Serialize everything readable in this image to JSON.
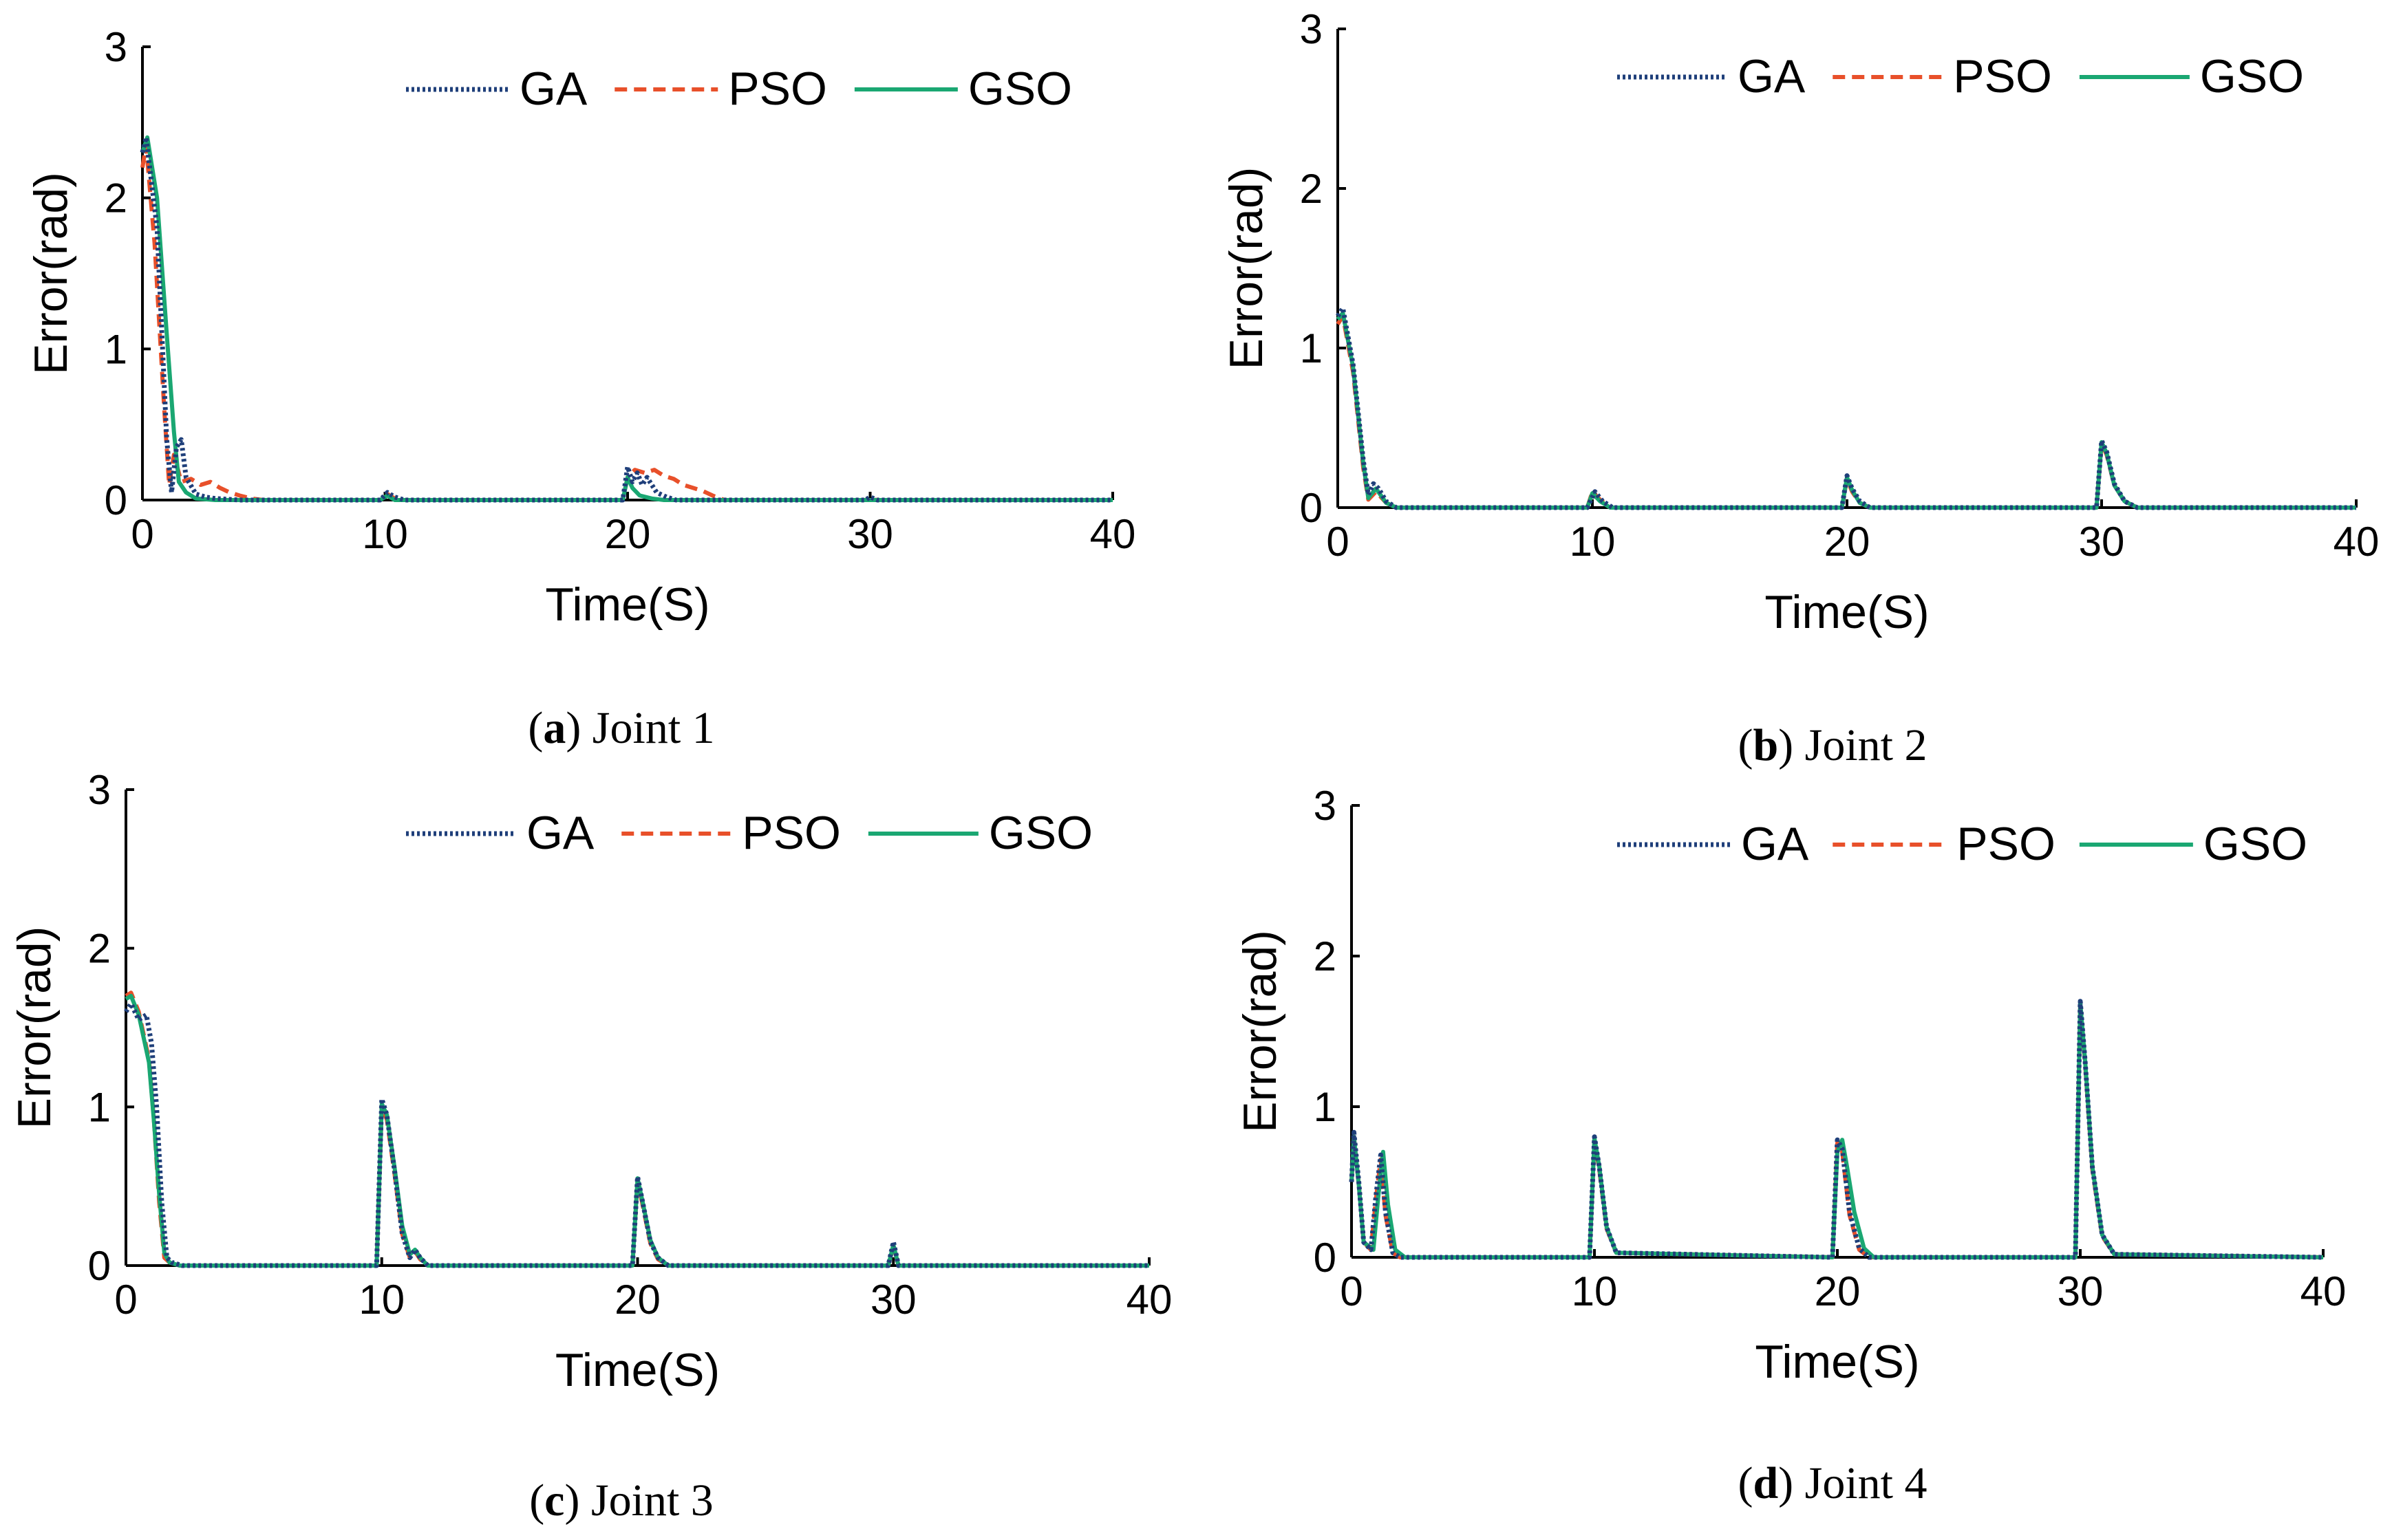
{
  "figure": {
    "legend_labels": [
      "GA",
      "PSO",
      "GSO"
    ],
    "colors": {
      "GA": "#1f3f7a",
      "PSO": "#e8502a",
      "GSO": "#1aa772"
    }
  },
  "chart_data": [
    {
      "type": "line",
      "panel": "a",
      "caption_letter": "a",
      "caption_text": " Joint 1",
      "xlabel": "Time(S)",
      "ylabel": "Error(rad)",
      "xlim": [
        0,
        40
      ],
      "ylim": [
        0,
        3
      ],
      "xticks": [
        "0",
        "10",
        "20",
        "30",
        "40"
      ],
      "yticks": [
        "0",
        "1",
        "2",
        "3"
      ],
      "legend": [
        "GA",
        "PSO",
        "GSO"
      ],
      "series": [
        {
          "name": "GA",
          "style": "dotted",
          "x": [
            0,
            0.15,
            0.6,
            1.0,
            1.2,
            1.4,
            1.6,
            1.8,
            2.2,
            2.6,
            3.0,
            4.0,
            9.8,
            10.1,
            10.4,
            10.8,
            19.8,
            20.0,
            20.2,
            20.4,
            20.6,
            20.8,
            21.2,
            21.6,
            22.0,
            29.8,
            30.0,
            30.3,
            40
          ],
          "y": [
            2.3,
            2.4,
            1.8,
            0.4,
            0.05,
            0.35,
            0.4,
            0.15,
            0.04,
            0.02,
            0.01,
            0.0,
            0.0,
            0.05,
            0.02,
            0.0,
            0.0,
            0.22,
            0.12,
            0.18,
            0.1,
            0.15,
            0.05,
            0.02,
            0.0,
            0.0,
            0.02,
            0.0,
            0.0
          ]
        },
        {
          "name": "PSO",
          "style": "dashed",
          "x": [
            0,
            0.15,
            0.5,
            0.9,
            1.1,
            1.3,
            1.6,
            2.0,
            2.4,
            2.8,
            3.2,
            3.6,
            4.0,
            4.5,
            5.0,
            9.8,
            10.1,
            10.5,
            19.8,
            20.0,
            20.3,
            20.7,
            21.1,
            21.5,
            21.9,
            22.3,
            22.7,
            23.1,
            23.5,
            24.0,
            29.8,
            30.0,
            30.3,
            40
          ],
          "y": [
            2.2,
            2.35,
            1.7,
            0.6,
            0.1,
            0.3,
            0.12,
            0.14,
            0.1,
            0.12,
            0.08,
            0.05,
            0.03,
            0.01,
            0.0,
            0.0,
            0.04,
            0.0,
            0.0,
            0.15,
            0.2,
            0.18,
            0.2,
            0.16,
            0.14,
            0.1,
            0.08,
            0.06,
            0.03,
            0.0,
            0.0,
            0.01,
            0.0,
            0.0
          ]
        },
        {
          "name": "GSO",
          "style": "solid",
          "x": [
            0,
            0.2,
            0.6,
            1.0,
            1.3,
            1.5,
            1.8,
            2.2,
            3.0,
            9.8,
            10.1,
            10.4,
            19.8,
            20.0,
            20.2,
            20.5,
            21.0,
            21.5,
            40
          ],
          "y": [
            2.3,
            2.4,
            2.0,
            1.1,
            0.45,
            0.12,
            0.05,
            0.01,
            0.0,
            0.0,
            0.03,
            0.0,
            0.0,
            0.15,
            0.08,
            0.03,
            0.01,
            0.0,
            0.0
          ]
        }
      ]
    },
    {
      "type": "line",
      "panel": "b",
      "caption_letter": "b",
      "caption_text": " Joint 2",
      "xlabel": "Time(S)",
      "ylabel": "Error(rad)",
      "xlim": [
        0,
        40
      ],
      "ylim": [
        0,
        3
      ],
      "xticks": [
        "0",
        "10",
        "20",
        "30",
        "40"
      ],
      "yticks": [
        "0",
        "1",
        "2",
        "3"
      ],
      "legend": [
        "GA",
        "PSO",
        "GSO"
      ],
      "series": [
        {
          "name": "GA",
          "style": "dotted",
          "x": [
            0,
            0.2,
            0.6,
            1.0,
            1.2,
            1.4,
            1.6,
            1.9,
            2.3,
            9.8,
            10.1,
            10.4,
            10.8,
            19.8,
            20.0,
            20.2,
            20.5,
            20.9,
            29.8,
            30.0,
            30.2,
            30.5,
            30.9,
            31.4,
            40
          ],
          "y": [
            1.2,
            1.25,
            0.9,
            0.3,
            0.08,
            0.15,
            0.12,
            0.04,
            0.0,
            0.0,
            0.1,
            0.04,
            0.0,
            0.0,
            0.2,
            0.12,
            0.04,
            0.0,
            0.0,
            0.42,
            0.35,
            0.15,
            0.04,
            0.0,
            0.0
          ]
        },
        {
          "name": "PSO",
          "style": "dashed",
          "x": [
            0,
            0.2,
            0.6,
            1.0,
            1.2,
            1.5,
            1.9,
            2.3,
            9.8,
            10.0,
            10.3,
            10.7,
            19.8,
            20.0,
            20.2,
            20.5,
            20.9,
            29.8,
            30.0,
            30.2,
            30.5,
            30.9,
            31.4,
            40
          ],
          "y": [
            1.15,
            1.2,
            0.85,
            0.25,
            0.05,
            0.1,
            0.03,
            0.0,
            0.0,
            0.1,
            0.05,
            0.0,
            0.0,
            0.18,
            0.1,
            0.03,
            0.0,
            0.0,
            0.4,
            0.33,
            0.14,
            0.04,
            0.0,
            0.0
          ]
        },
        {
          "name": "GSO",
          "style": "solid",
          "x": [
            0,
            0.2,
            0.6,
            1.0,
            1.2,
            1.5,
            1.9,
            2.3,
            9.8,
            10.0,
            10.3,
            10.7,
            19.8,
            20.0,
            20.2,
            20.5,
            20.9,
            29.8,
            30.0,
            30.2,
            30.5,
            30.9,
            31.4,
            40
          ],
          "y": [
            1.18,
            1.22,
            0.88,
            0.28,
            0.06,
            0.12,
            0.03,
            0.0,
            0.0,
            0.09,
            0.04,
            0.0,
            0.0,
            0.19,
            0.11,
            0.03,
            0.0,
            0.0,
            0.41,
            0.34,
            0.14,
            0.04,
            0.0,
            0.0
          ]
        }
      ]
    },
    {
      "type": "line",
      "panel": "c",
      "caption_letter": "c",
      "caption_text": " Joint 3",
      "xlabel": "Time(S)",
      "ylabel": "Error(rad)",
      "xlim": [
        0,
        40
      ],
      "ylim": [
        0,
        3
      ],
      "xticks": [
        "0",
        "10",
        "20",
        "30",
        "40"
      ],
      "yticks": [
        "0",
        "1",
        "2",
        "3"
      ],
      "legend": [
        "GA",
        "PSO",
        "GSO"
      ],
      "series": [
        {
          "name": "GA",
          "style": "dotted",
          "x": [
            0,
            0.2,
            0.5,
            0.8,
            1.0,
            1.2,
            1.4,
            1.6,
            1.8,
            2.2,
            9.8,
            10.0,
            10.2,
            10.5,
            10.8,
            11.1,
            11.3,
            11.5,
            11.8,
            19.8,
            20.0,
            20.2,
            20.5,
            20.8,
            21.2,
            29.8,
            30.0,
            30.2,
            40
          ],
          "y": [
            1.6,
            1.65,
            1.55,
            1.58,
            1.4,
            1.0,
            0.4,
            0.05,
            0.02,
            0.0,
            0.0,
            1.05,
            0.95,
            0.6,
            0.2,
            0.05,
            0.1,
            0.05,
            0.0,
            0.0,
            0.56,
            0.4,
            0.15,
            0.05,
            0.0,
            0.0,
            0.15,
            0.0,
            0.0
          ]
        },
        {
          "name": "PSO",
          "style": "dashed",
          "x": [
            0,
            0.2,
            0.5,
            0.9,
            1.1,
            1.3,
            1.5,
            1.7,
            2.1,
            9.8,
            10.0,
            10.2,
            10.5,
            10.8,
            11.1,
            11.3,
            11.5,
            11.8,
            19.8,
            20.0,
            20.2,
            20.5,
            20.8,
            21.2,
            29.8,
            30.0,
            30.2,
            40
          ],
          "y": [
            1.7,
            1.72,
            1.6,
            1.3,
            0.9,
            0.4,
            0.05,
            0.02,
            0.0,
            0.0,
            1.0,
            0.92,
            0.58,
            0.2,
            0.05,
            0.09,
            0.04,
            0.0,
            0.0,
            0.54,
            0.38,
            0.14,
            0.04,
            0.0,
            0.0,
            0.12,
            0.0,
            0.0
          ]
        },
        {
          "name": "GSO",
          "style": "solid",
          "x": [
            0,
            0.2,
            0.5,
            0.9,
            1.1,
            1.3,
            1.5,
            1.7,
            2.1,
            9.8,
            10.0,
            10.2,
            10.5,
            10.8,
            11.1,
            11.3,
            11.5,
            11.8,
            19.8,
            20.0,
            20.2,
            20.5,
            20.8,
            21.2,
            29.8,
            30.0,
            30.2,
            40
          ],
          "y": [
            1.68,
            1.7,
            1.58,
            1.28,
            0.9,
            0.45,
            0.08,
            0.02,
            0.0,
            0.0,
            1.02,
            0.95,
            0.62,
            0.25,
            0.07,
            0.1,
            0.05,
            0.0,
            0.0,
            0.55,
            0.4,
            0.16,
            0.05,
            0.0,
            0.0,
            0.13,
            0.0,
            0.0
          ]
        }
      ]
    },
    {
      "type": "line",
      "panel": "d",
      "caption_letter": "d",
      "caption_text": " Joint 4",
      "xlabel": "Time(S)",
      "ylabel": "Error(rad)",
      "xlim": [
        0,
        40
      ],
      "ylim": [
        0,
        3
      ],
      "xticks": [
        "0",
        "10",
        "20",
        "30",
        "40"
      ],
      "yticks": [
        "0",
        "1",
        "2",
        "3"
      ],
      "legend": [
        "GA",
        "PSO",
        "GSO"
      ],
      "series": [
        {
          "name": "GA",
          "style": "dotted",
          "x": [
            0,
            0.1,
            0.3,
            0.5,
            0.8,
            1.0,
            1.2,
            1.4,
            1.7,
            2.0,
            9.8,
            10.0,
            10.2,
            10.5,
            10.9,
            19.8,
            20.0,
            20.2,
            20.5,
            20.9,
            21.3,
            29.8,
            30.0,
            30.2,
            30.5,
            30.9,
            31.4,
            40
          ],
          "y": [
            0.5,
            0.83,
            0.5,
            0.1,
            0.05,
            0.4,
            0.68,
            0.3,
            0.03,
            0.0,
            0.0,
            0.8,
            0.6,
            0.2,
            0.03,
            0.0,
            0.78,
            0.72,
            0.3,
            0.06,
            0.0,
            0.0,
            1.7,
            1.3,
            0.6,
            0.15,
            0.02,
            0.0
          ]
        },
        {
          "name": "PSO",
          "style": "dashed",
          "x": [
            0,
            0.1,
            0.3,
            0.5,
            0.8,
            1.0,
            1.2,
            1.4,
            1.7,
            2.0,
            9.8,
            10.0,
            10.2,
            10.5,
            10.9,
            19.8,
            20.0,
            20.2,
            20.5,
            20.9,
            21.3,
            29.8,
            30.0,
            30.2,
            30.5,
            30.9,
            31.4,
            40
          ],
          "y": [
            0.5,
            0.8,
            0.48,
            0.1,
            0.05,
            0.38,
            0.65,
            0.28,
            0.03,
            0.0,
            0.0,
            0.78,
            0.58,
            0.19,
            0.03,
            0.0,
            0.76,
            0.7,
            0.28,
            0.05,
            0.0,
            0.0,
            1.68,
            1.28,
            0.58,
            0.14,
            0.02,
            0.0
          ]
        },
        {
          "name": "GSO",
          "style": "solid",
          "x": [
            0,
            0.1,
            0.3,
            0.5,
            0.9,
            1.1,
            1.3,
            1.5,
            1.8,
            2.2,
            9.8,
            10.0,
            10.2,
            10.5,
            10.9,
            19.8,
            20.0,
            20.2,
            20.4,
            20.7,
            21.1,
            21.5,
            29.8,
            30.0,
            30.2,
            30.5,
            30.9,
            31.4,
            40
          ],
          "y": [
            0.5,
            0.8,
            0.48,
            0.1,
            0.05,
            0.4,
            0.7,
            0.35,
            0.05,
            0.0,
            0.0,
            0.79,
            0.6,
            0.2,
            0.03,
            0.0,
            0.7,
            0.78,
            0.6,
            0.3,
            0.06,
            0.0,
            0.0,
            1.69,
            1.3,
            0.6,
            0.15,
            0.02,
            0.0
          ]
        }
      ]
    }
  ]
}
